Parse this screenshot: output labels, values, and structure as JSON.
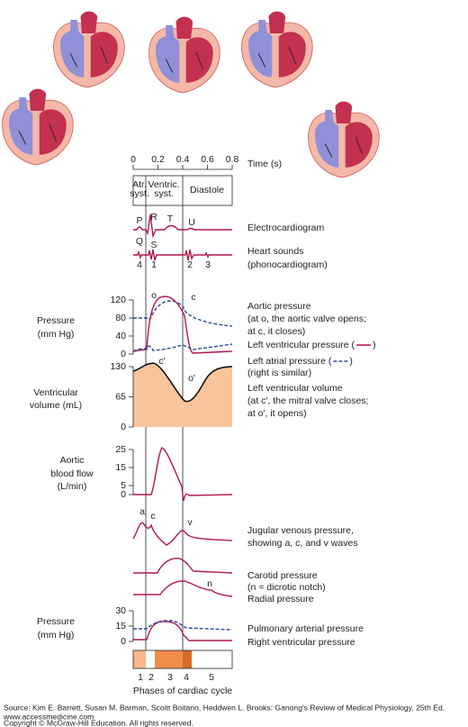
{
  "time_axis": {
    "label": "Time (s)",
    "xlim": [
      0,
      0.8
    ],
    "xticks": [
      0,
      0.2,
      0.4,
      0.6,
      0.8
    ]
  },
  "header": {
    "atrial": [
      "Atr.",
      "syst."
    ],
    "ventricular": [
      "Ventric.",
      "syst."
    ],
    "diastole": "Diastole"
  },
  "wave_labels": [
    "P",
    "R",
    "T",
    "U",
    "Q",
    "S"
  ],
  "sound_labels": [
    "4",
    "1",
    "2",
    "3"
  ],
  "point_labels": [
    "o",
    "c",
    "c'",
    "o'",
    "a",
    "c",
    "v",
    "n"
  ],
  "right_labels": [
    {
      "text": "Electrocardiogram"
    },
    {
      "text": "Heart sounds"
    },
    {
      "text": "(phonocardiogram)"
    },
    {
      "text": "Aortic pressure"
    },
    {
      "text": "(at o, the aortic valve opens;"
    },
    {
      "text": "at c, it closes)"
    },
    {
      "text": "Left ventricular pressure (",
      "after": ")"
    },
    {
      "text": "Left atrial pressure (",
      "after": ")"
    },
    {
      "text": "(right is similar)"
    },
    {
      "text": "Left ventricular volume"
    },
    {
      "text": "(at c', the mitral valve closes;"
    },
    {
      "text": "at o', it opens)"
    },
    {
      "text": "Jugular venous pressure,"
    },
    {
      "text": "showing a, c, and v waves"
    },
    {
      "text": "Carotid pressure"
    },
    {
      "text": "(n = dicrotic notch)"
    },
    {
      "text": "Radial pressure"
    },
    {
      "text": "Pulmonary arterial pressure"
    },
    {
      "text": "Right ventricular pressure"
    }
  ],
  "panels": [
    {
      "label": [
        "Pressure",
        "(mm Hg)"
      ],
      "ylim": [
        0,
        120
      ],
      "yticks": [
        0,
        40,
        80,
        120
      ]
    },
    {
      "label": [
        "Ventricular",
        "volume (mL)"
      ],
      "ylim": [
        0,
        130
      ],
      "yticks": [
        0,
        65,
        130
      ]
    },
    {
      "label": [
        "Aortic",
        "blood flow",
        "(L/min)"
      ],
      "ylim": [
        0,
        25
      ],
      "yticks": [
        0,
        5,
        15,
        25
      ]
    },
    {
      "label": [
        "Pressure",
        "(mm Hg)"
      ],
      "ylim": [
        0,
        30
      ],
      "yticks": [
        0,
        15,
        30
      ]
    }
  ],
  "phases": {
    "numbers": [
      "1",
      "2",
      "3",
      "4",
      "5"
    ],
    "label": "Phases of cardiac cycle"
  },
  "footer": [
    "Source: Kim E. Barrett, Susan M. Barman, Scoitt Boitano, Heddwen L. Brooks: Ganong's Review of Medical Physiology, 25th Ed.",
    "www.accessmedicine.com",
    "Copyright © McGraw-Hill Education.  All rights reserved."
  ]
}
